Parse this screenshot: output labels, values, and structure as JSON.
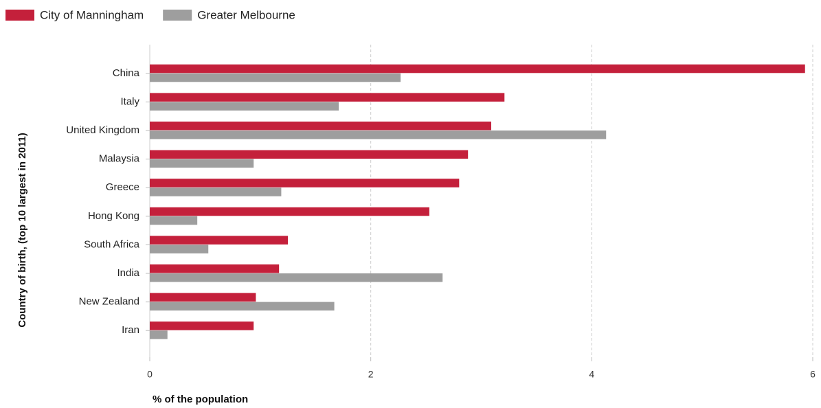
{
  "chart_data": {
    "type": "hbar",
    "x_label": "% of the population",
    "y_label": "Country of birth, (top 10 largest in 2011)",
    "categories": [
      "China",
      "Italy",
      "United Kingdom",
      "Malaysia",
      "Greece",
      "Hong Kong",
      "South Africa",
      "India",
      "New Zealand",
      "Iran"
    ],
    "series": [
      {
        "name": "City of Manningham",
        "color": "#c4203b",
        "values": [
          5.93,
          3.21,
          3.09,
          2.88,
          2.8,
          2.53,
          1.25,
          1.17,
          0.96,
          0.94
        ]
      },
      {
        "name": "Greater Melbourne",
        "color": "#9e9e9e",
        "values": [
          2.27,
          1.71,
          4.13,
          0.94,
          1.19,
          0.43,
          0.53,
          2.65,
          1.67,
          0.16
        ]
      }
    ],
    "xlim": [
      0,
      6
    ],
    "xticks": [
      0,
      2,
      4,
      6
    ],
    "grid": true
  }
}
